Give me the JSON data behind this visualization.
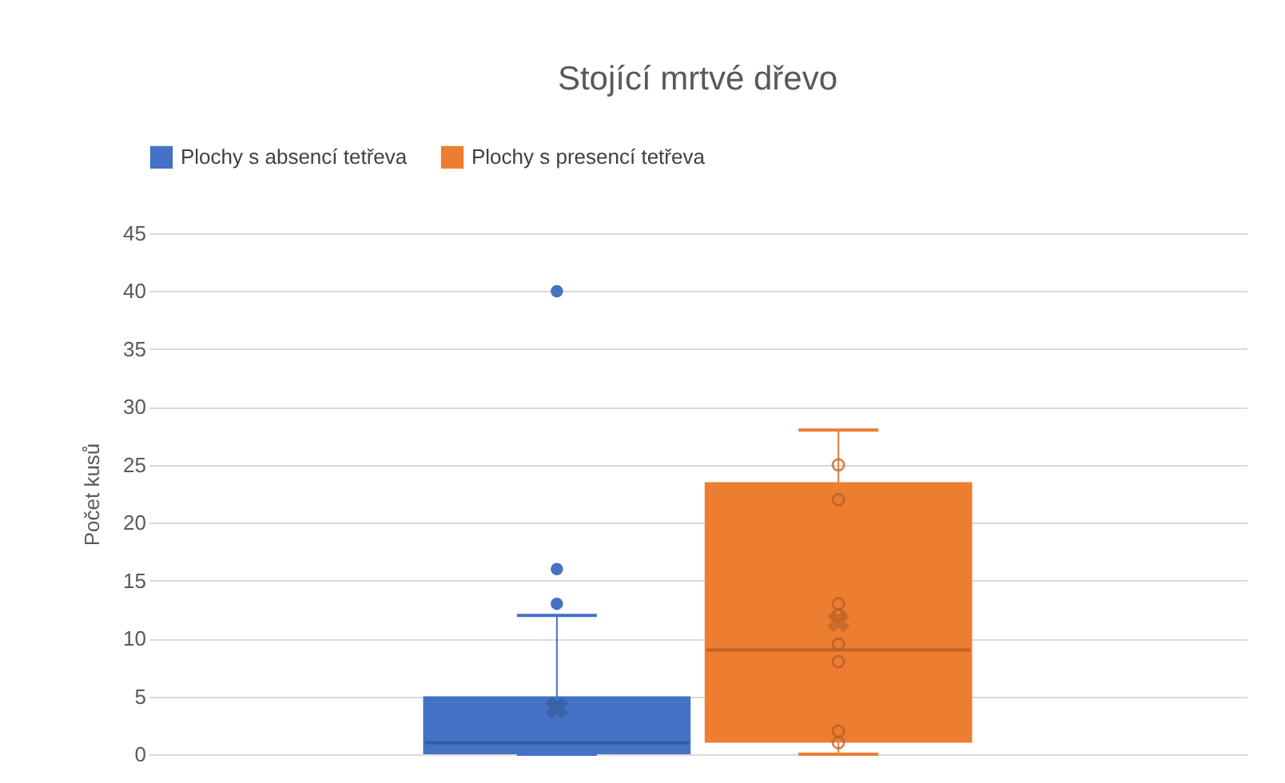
{
  "chart_data": {
    "type": "box",
    "title": "Stojící mrtvé dřevo",
    "ylabel": "Počet kusů",
    "categories": [
      null
    ],
    "series": [
      {
        "name": "Plochy s absencí tetřeva",
        "color": "#4472c4",
        "boxes": [
          {
            "low": 0,
            "q1": 0,
            "median": 1,
            "q3": 5,
            "high": 12,
            "mean": 4,
            "outliers": [
              13,
              16,
              40
            ]
          }
        ]
      },
      {
        "name": "Plochy s presencí tetřeva",
        "color": "#ed7d31",
        "boxes": [
          {
            "low": 0,
            "q1": 1,
            "median": 9,
            "q3": 23.5,
            "high": 28,
            "mean": 11.5
          }
        ]
      },
      {
        "type": "scatter",
        "color": "#b45f27",
        "x": [
          null,
          null,
          null,
          null,
          null,
          null,
          null,
          null
        ],
        "values": [
          25,
          22,
          13,
          12,
          9.5,
          8,
          2,
          1
        ]
      }
    ],
    "ylim": [
      0,
      45
    ],
    "yticks": [
      0,
      5,
      10,
      15,
      20,
      25,
      30,
      35,
      40,
      45
    ],
    "grid": "y",
    "legend": "top"
  }
}
